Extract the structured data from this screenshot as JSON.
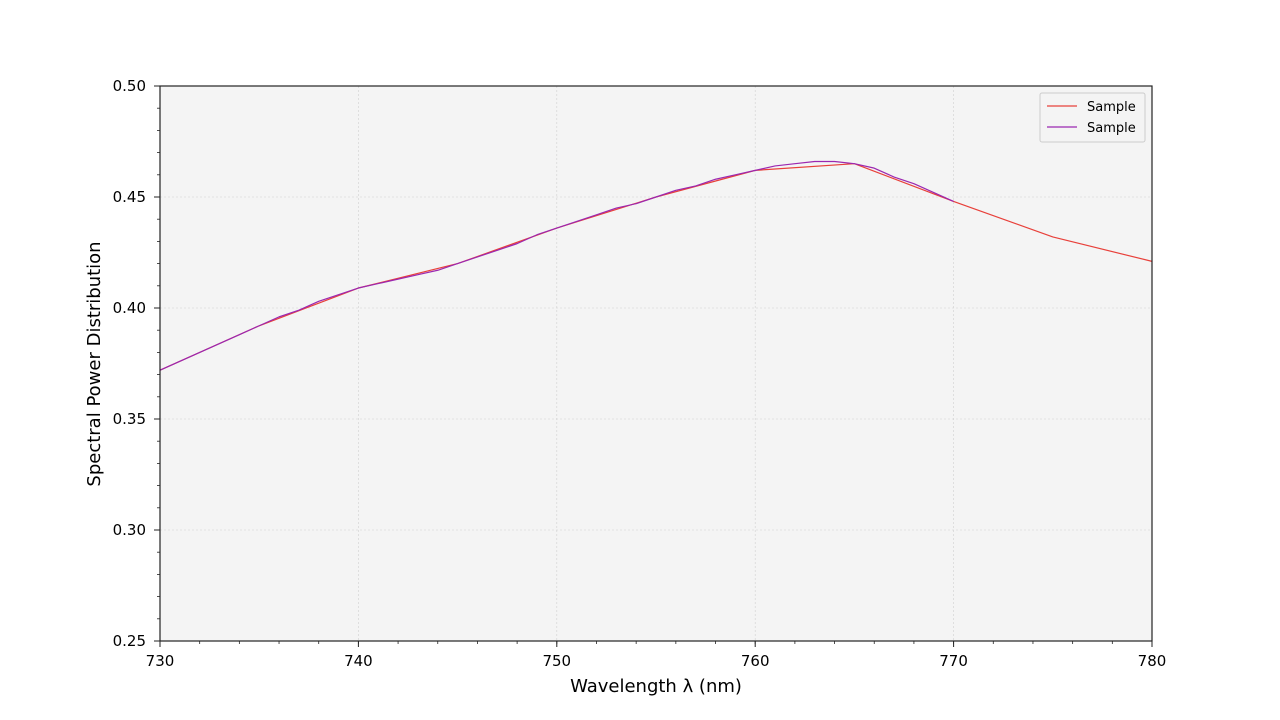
{
  "chart_data": {
    "type": "line",
    "xlabel": "Wavelength λ (nm)",
    "ylabel": "Spectral Power Distribution",
    "xlim": [
      730,
      780
    ],
    "ylim": [
      0.25,
      0.5
    ],
    "x_ticks": [
      "730",
      "740",
      "750",
      "760",
      "770",
      "780"
    ],
    "y_ticks": [
      "0.25",
      "0.30",
      "0.35",
      "0.40",
      "0.45",
      "0.50"
    ],
    "grid": true,
    "legend_position": "top-right",
    "series": [
      {
        "name": "Sample",
        "color": "#e8403a",
        "x": [
          730,
          735,
          740,
          745,
          750,
          755,
          760,
          765,
          770,
          775,
          780
        ],
        "y": [
          0.372,
          0.392,
          0.409,
          0.42,
          0.436,
          0.45,
          0.462,
          0.465,
          0.448,
          0.432,
          0.421
        ]
      },
      {
        "name": "Sample",
        "color": "#9b27b0",
        "x": [
          730,
          731,
          732,
          733,
          734,
          735,
          736,
          737,
          738,
          739,
          740,
          741,
          742,
          743,
          744,
          745,
          746,
          747,
          748,
          749,
          750,
          751,
          752,
          753,
          754,
          755,
          756,
          757,
          758,
          759,
          760,
          761,
          762,
          763,
          764,
          765,
          766,
          767,
          768,
          769,
          770
        ],
        "y": [
          0.372,
          0.376,
          0.38,
          0.384,
          0.388,
          0.392,
          0.396,
          0.399,
          0.403,
          0.406,
          0.409,
          0.411,
          0.413,
          0.415,
          0.417,
          0.42,
          0.423,
          0.426,
          0.429,
          0.433,
          0.436,
          0.439,
          0.442,
          0.445,
          0.447,
          0.45,
          0.453,
          0.455,
          0.458,
          0.46,
          0.462,
          0.464,
          0.465,
          0.466,
          0.466,
          0.465,
          0.463,
          0.459,
          0.456,
          0.452,
          0.448
        ]
      }
    ]
  }
}
